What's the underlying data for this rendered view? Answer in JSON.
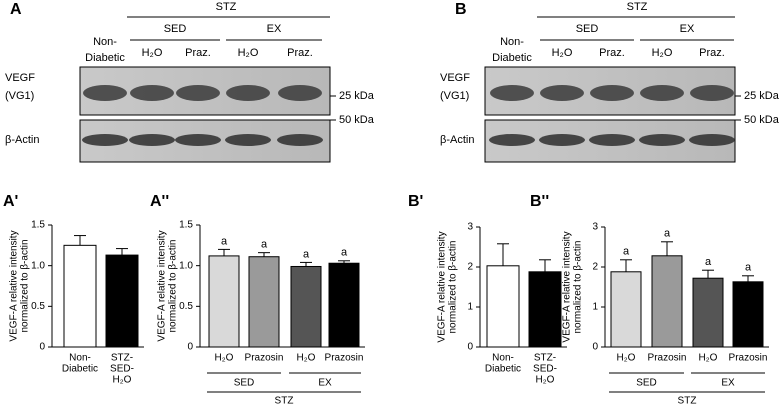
{
  "blots": [
    {
      "label": "A",
      "super": "STZ",
      "groups": [
        "SED",
        "EX"
      ],
      "lanes": [
        [
          "Non-",
          "Diabetic"
        ],
        [
          "H₂O"
        ],
        [
          "Praz."
        ],
        [
          "H₂O"
        ],
        [
          "Praz."
        ]
      ],
      "rows": [
        [
          "VEGF",
          "(VG1)"
        ],
        [
          "β-Actin"
        ]
      ],
      "markers": [
        "25 kDa",
        "50 kDa"
      ]
    },
    {
      "label": "B",
      "super": "STZ",
      "groups": [
        "SED",
        "EX"
      ],
      "lanes": [
        [
          "Non-",
          "Diabetic"
        ],
        [
          "H₂O"
        ],
        [
          "Praz."
        ],
        [
          "H₂O"
        ],
        [
          "Praz."
        ]
      ],
      "rows": [
        [
          "VEGF",
          "(VG1)"
        ],
        [
          "β-Actin"
        ]
      ],
      "markers": [
        "25 kDa",
        "50 kDa"
      ]
    }
  ],
  "chart_data": [
    {
      "type": "bar",
      "panel": "A'",
      "ylabel": [
        "VEGF-A relative intensity",
        "normalized to β-actin"
      ],
      "categories": [
        [
          "Non-",
          "Diabetic"
        ],
        [
          "STZ-",
          "SED-",
          "H₂O"
        ]
      ],
      "values": [
        1.25,
        1.13
      ],
      "errors": [
        0.12,
        0.08
      ],
      "colors": [
        "#ffffff",
        "#000000"
      ],
      "ylim": [
        0,
        1.5
      ],
      "yticks": [
        0,
        0.5,
        {
          "value": 1,
          "label": "1.0"
        },
        1.5
      ]
    },
    {
      "type": "bar",
      "panel": "A''",
      "ylabel": [
        "VEGF-A relative intensity",
        "normalized to β-actin"
      ],
      "categories": [
        [
          "H₂O"
        ],
        [
          "Prazosin"
        ],
        [
          "H₂O"
        ],
        [
          "Prazosin"
        ]
      ],
      "groups": [
        "SED",
        "EX"
      ],
      "super": "STZ",
      "values": [
        1.12,
        1.11,
        0.99,
        1.03
      ],
      "errors": [
        0.08,
        0.05,
        0.05,
        0.03
      ],
      "annotations": [
        "a",
        "a",
        "a",
        "a"
      ],
      "colors": [
        "#d9d9d9",
        "#9a9a9a",
        "#555555",
        "#000000"
      ],
      "ylim": [
        0,
        1.5
      ],
      "yticks": [
        0,
        0.5,
        {
          "value": 1,
          "label": "1.0"
        },
        1.5
      ]
    },
    {
      "type": "bar",
      "panel": "B'",
      "ylabel": [
        "VEGF-A relative intensity",
        "normalized to β-actin"
      ],
      "categories": [
        [
          "Non-",
          "Diabetic"
        ],
        [
          "STZ-",
          "SED-",
          "H₂O"
        ]
      ],
      "values": [
        2.03,
        1.88
      ],
      "errors": [
        0.55,
        0.3
      ],
      "colors": [
        "#ffffff",
        "#000000"
      ],
      "ylim": [
        0,
        3
      ],
      "yticks": [
        0,
        1,
        2,
        3
      ]
    },
    {
      "type": "bar",
      "panel": "B''",
      "ylabel": [
        "VEGF-A relative intensity",
        "normalized to β-actin"
      ],
      "categories": [
        [
          "H₂O"
        ],
        [
          "Prazosin"
        ],
        [
          "H₂O"
        ],
        [
          "Prazosin"
        ]
      ],
      "groups": [
        "SED",
        "EX"
      ],
      "super": "STZ",
      "values": [
        1.88,
        2.28,
        1.72,
        1.63
      ],
      "errors": [
        0.3,
        0.35,
        0.2,
        0.15
      ],
      "annotations": [
        "a",
        "a",
        "a",
        "a"
      ],
      "colors": [
        "#d9d9d9",
        "#9a9a9a",
        "#555555",
        "#000000"
      ],
      "ylim": [
        0,
        3
      ],
      "yticks": [
        0,
        1,
        2,
        3
      ]
    }
  ]
}
